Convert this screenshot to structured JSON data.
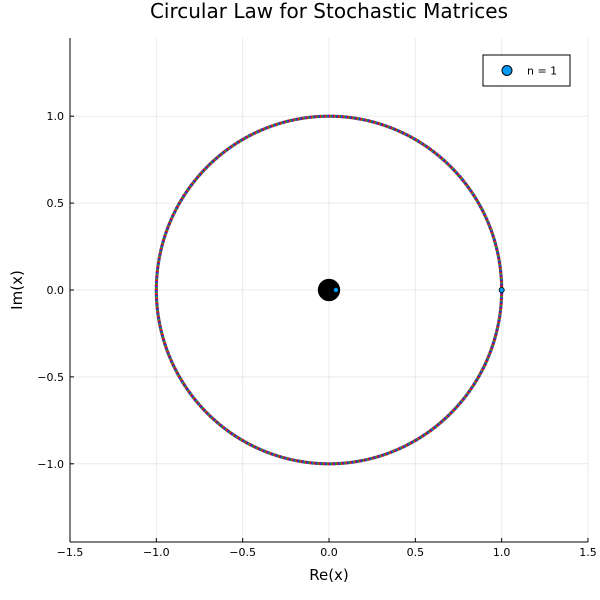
{
  "chart_data": {
    "type": "scatter",
    "title": "Circular Law for Stochastic Matrices",
    "xlabel": "Re(x)",
    "ylabel": "Im(x)",
    "xlim": [
      -1.5,
      1.5
    ],
    "ylim": [
      -1.45,
      1.45
    ],
    "x_ticks": [
      -1.5,
      -1.0,
      -0.5,
      0.0,
      0.5,
      1.0,
      1.5
    ],
    "x_tick_labels": [
      "−1.5",
      "−1.0",
      "−0.5",
      "0.0",
      "0.5",
      "1.0",
      "1.5"
    ],
    "y_ticks": [
      -1.0,
      -0.5,
      0.0,
      0.5,
      1.0
    ],
    "y_tick_labels": [
      "−1.0",
      "−0.5",
      "0.0",
      "0.5",
      "1.0"
    ],
    "grid": true,
    "legend_position": "top-right",
    "circle": {
      "center": [
        0,
        0
      ],
      "radius": 1.0,
      "point_count": 720,
      "colors": [
        "#e6121a",
        "#2a2ae0",
        "#2e9a2e"
      ]
    },
    "central_cluster": {
      "center": [
        0,
        0
      ],
      "radius": 0.03,
      "color": "#000000"
    },
    "series": [
      {
        "name": "n = 1",
        "color": "#009af9",
        "x": [
          1.0,
          0.04
        ],
        "y": [
          0.0,
          0.0
        ]
      }
    ]
  }
}
